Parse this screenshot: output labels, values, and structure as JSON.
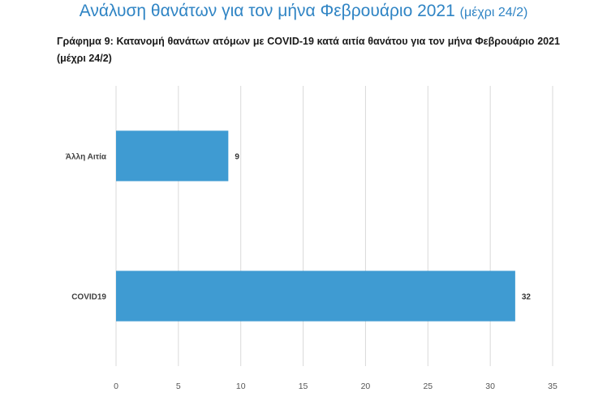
{
  "heading": {
    "main": "Ανάλυση θανάτων για τον μήνα Φεβρουάριο 2021",
    "note": "(μέχρι 24/2)"
  },
  "caption": "Γράφημα 9: Κατανομή θανάτων ατόμων με COVID-19 κατά αιτία θανάτου για τον μήνα Φεβρουάριο 2021 (μέχρι 24/2)",
  "colors": {
    "heading": "#2f84c4",
    "bar": "#3f9bd2",
    "grid": "#d9d9d9"
  },
  "chart_data": {
    "type": "bar",
    "orientation": "horizontal",
    "categories": [
      "Άλλη Αιτία",
      "COVID19"
    ],
    "values": [
      9,
      32
    ],
    "data_labels": [
      "9",
      "32"
    ],
    "xlim": [
      0,
      35
    ],
    "xticks": [
      "0",
      "5",
      "10",
      "15",
      "20",
      "25",
      "30",
      "35"
    ],
    "grid": true,
    "legend": "none"
  }
}
